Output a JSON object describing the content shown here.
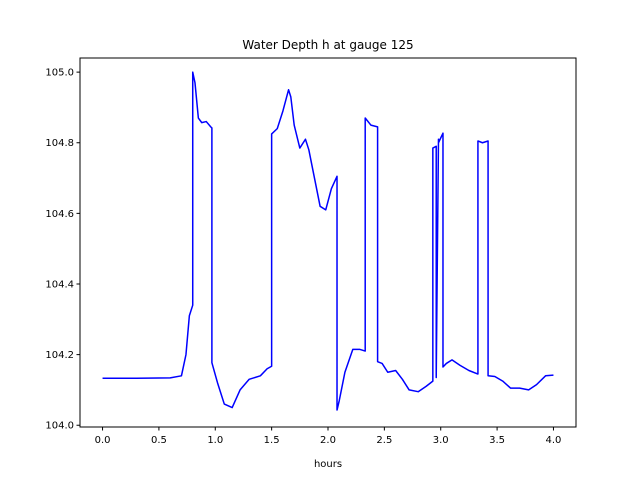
{
  "chart_data": {
    "type": "line",
    "title": "Water Depth h at gauge 125",
    "xlabel": "hours",
    "ylabel": "",
    "xlim": [
      -0.2,
      4.2
    ],
    "ylim": [
      103.995,
      105.04
    ],
    "xticks": [
      0.0,
      0.5,
      1.0,
      1.5,
      2.0,
      2.5,
      3.0,
      3.5,
      4.0
    ],
    "xtick_labels": [
      "0.0",
      "0.5",
      "1.0",
      "1.5",
      "2.0",
      "2.5",
      "3.0",
      "3.5",
      "4.0"
    ],
    "yticks": [
      104.0,
      104.2,
      104.4,
      104.6,
      104.8,
      105.0
    ],
    "ytick_labels": [
      "104.0",
      "104.2",
      "104.4",
      "104.6",
      "104.8",
      "105.0"
    ],
    "grid": false,
    "series": [
      {
        "color": "#0000ff",
        "x": [
          0.0,
          0.3,
          0.6,
          0.7,
          0.74,
          0.77,
          0.8,
          0.8,
          0.82,
          0.85,
          0.88,
          0.92,
          0.96,
          0.97,
          0.97,
          1.02,
          1.08,
          1.15,
          1.22,
          1.3,
          1.4,
          1.46,
          1.5,
          1.5,
          1.55,
          1.6,
          1.65,
          1.67,
          1.7,
          1.75,
          1.8,
          1.83,
          1.88,
          1.93,
          1.98,
          2.03,
          2.08,
          2.08,
          2.1,
          2.15,
          2.22,
          2.28,
          2.33,
          2.33,
          2.38,
          2.44,
          2.44,
          2.48,
          2.53,
          2.6,
          2.66,
          2.72,
          2.8,
          2.87,
          2.93,
          2.93,
          2.96,
          2.96,
          2.98,
          2.98,
          3.02,
          3.02,
          3.05,
          3.1,
          3.17,
          3.25,
          3.33,
          3.33,
          3.37,
          3.42,
          3.42,
          3.48,
          3.55,
          3.62,
          3.7,
          3.78,
          3.85,
          3.93,
          4.0
        ],
        "y": [
          104.133,
          104.133,
          104.134,
          104.14,
          104.2,
          104.31,
          104.34,
          105.0,
          104.97,
          104.87,
          104.857,
          104.86,
          104.845,
          104.842,
          104.177,
          104.12,
          104.06,
          104.05,
          104.1,
          104.13,
          104.14,
          104.16,
          104.167,
          104.825,
          104.84,
          104.89,
          104.95,
          104.93,
          104.85,
          104.785,
          104.81,
          104.78,
          104.7,
          104.62,
          104.61,
          104.67,
          104.705,
          104.043,
          104.07,
          104.15,
          104.215,
          104.215,
          104.21,
          104.87,
          104.85,
          104.845,
          104.18,
          104.175,
          104.15,
          104.155,
          104.13,
          104.1,
          104.095,
          104.11,
          104.125,
          104.785,
          104.79,
          104.135,
          104.81,
          104.8,
          104.827,
          104.165,
          104.175,
          104.185,
          104.17,
          104.155,
          104.145,
          104.805,
          104.8,
          104.805,
          104.14,
          104.138,
          104.125,
          104.105,
          104.105,
          104.1,
          104.115,
          104.14,
          104.142
        ]
      }
    ]
  }
}
